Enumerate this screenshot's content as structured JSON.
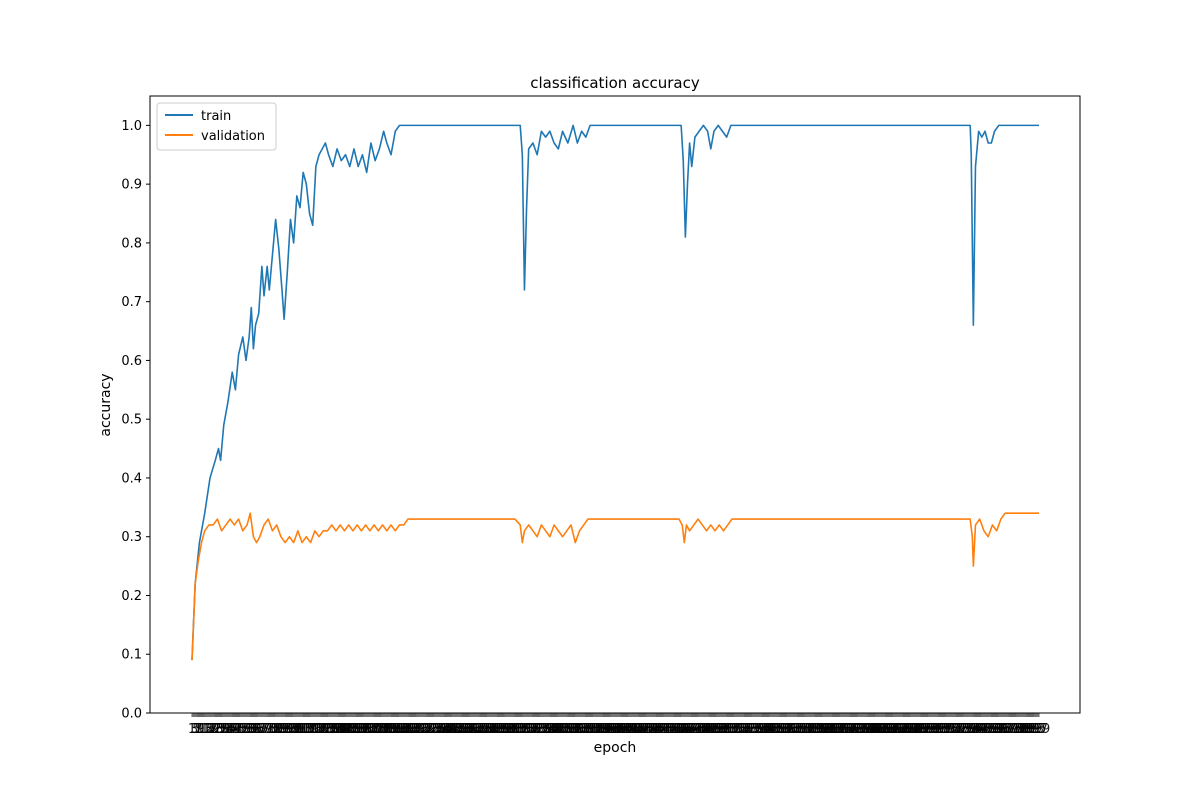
{
  "chart_data": {
    "type": "line",
    "title": "classification accuracy",
    "xlabel": "epoch",
    "ylabel": "accuracy",
    "xlim": [
      0,
      800
    ],
    "ylim": [
      0.0,
      1.05
    ],
    "yticks": [
      0.0,
      0.1,
      0.2,
      0.3,
      0.4,
      0.5,
      0.6,
      0.7,
      0.8,
      0.9,
      1.0
    ],
    "ytick_labels": [
      "0.0",
      "0.1",
      "0.2",
      "0.3",
      "0.4",
      "0.5",
      "0.6",
      "0.7",
      "0.8",
      "0.9",
      "1.0"
    ],
    "x_tick_count": 800,
    "grid": false,
    "legend_position": "upper-left",
    "series": [
      {
        "name": "train",
        "color": "#1f77b4",
        "points": [
          [
            0,
            0.09
          ],
          [
            3,
            0.22
          ],
          [
            7,
            0.29
          ],
          [
            12,
            0.34
          ],
          [
            17,
            0.4
          ],
          [
            22,
            0.43
          ],
          [
            25,
            0.45
          ],
          [
            27,
            0.43
          ],
          [
            30,
            0.49
          ],
          [
            34,
            0.53
          ],
          [
            38,
            0.58
          ],
          [
            41,
            0.55
          ],
          [
            44,
            0.61
          ],
          [
            48,
            0.64
          ],
          [
            51,
            0.6
          ],
          [
            54,
            0.64
          ],
          [
            56,
            0.69
          ],
          [
            58,
            0.62
          ],
          [
            60,
            0.66
          ],
          [
            63,
            0.68
          ],
          [
            66,
            0.76
          ],
          [
            68,
            0.71
          ],
          [
            71,
            0.76
          ],
          [
            73,
            0.72
          ],
          [
            76,
            0.78
          ],
          [
            79,
            0.84
          ],
          [
            82,
            0.79
          ],
          [
            85,
            0.72
          ],
          [
            87,
            0.67
          ],
          [
            90,
            0.75
          ],
          [
            93,
            0.84
          ],
          [
            96,
            0.8
          ],
          [
            99,
            0.88
          ],
          [
            102,
            0.86
          ],
          [
            105,
            0.92
          ],
          [
            108,
            0.9
          ],
          [
            111,
            0.85
          ],
          [
            114,
            0.83
          ],
          [
            117,
            0.93
          ],
          [
            120,
            0.95
          ],
          [
            123,
            0.96
          ],
          [
            126,
            0.97
          ],
          [
            129,
            0.95
          ],
          [
            133,
            0.93
          ],
          [
            137,
            0.96
          ],
          [
            141,
            0.94
          ],
          [
            145,
            0.95
          ],
          [
            149,
            0.93
          ],
          [
            153,
            0.96
          ],
          [
            157,
            0.93
          ],
          [
            161,
            0.95
          ],
          [
            165,
            0.92
          ],
          [
            169,
            0.97
          ],
          [
            173,
            0.94
          ],
          [
            177,
            0.96
          ],
          [
            181,
            0.99
          ],
          [
            184,
            0.97
          ],
          [
            188,
            0.95
          ],
          [
            192,
            0.99
          ],
          [
            196,
            1.0
          ],
          [
            205,
            1.0
          ],
          [
            250,
            1.0
          ],
          [
            300,
            1.0
          ],
          [
            310,
            1.0
          ],
          [
            312,
            0.95
          ],
          [
            314,
            0.72
          ],
          [
            316,
            0.86
          ],
          [
            318,
            0.96
          ],
          [
            322,
            0.97
          ],
          [
            326,
            0.95
          ],
          [
            330,
            0.99
          ],
          [
            334,
            0.98
          ],
          [
            338,
            0.99
          ],
          [
            342,
            0.97
          ],
          [
            346,
            0.96
          ],
          [
            350,
            0.99
          ],
          [
            355,
            0.97
          ],
          [
            360,
            1.0
          ],
          [
            364,
            0.97
          ],
          [
            368,
            0.99
          ],
          [
            372,
            0.98
          ],
          [
            376,
            1.0
          ],
          [
            385,
            1.0
          ],
          [
            420,
            1.0
          ],
          [
            455,
            1.0
          ],
          [
            462,
            1.0
          ],
          [
            464,
            0.94
          ],
          [
            466,
            0.81
          ],
          [
            468,
            0.9
          ],
          [
            470,
            0.97
          ],
          [
            472,
            0.93
          ],
          [
            475,
            0.98
          ],
          [
            479,
            0.99
          ],
          [
            483,
            1.0
          ],
          [
            487,
            0.99
          ],
          [
            490,
            0.96
          ],
          [
            493,
            0.99
          ],
          [
            497,
            1.0
          ],
          [
            501,
            0.99
          ],
          [
            505,
            0.98
          ],
          [
            509,
            1.0
          ],
          [
            515,
            1.0
          ],
          [
            580,
            1.0
          ],
          [
            650,
            1.0
          ],
          [
            735,
            1.0
          ],
          [
            736,
            0.95
          ],
          [
            738,
            0.66
          ],
          [
            740,
            0.93
          ],
          [
            743,
            0.99
          ],
          [
            746,
            0.98
          ],
          [
            749,
            0.99
          ],
          [
            752,
            0.97
          ],
          [
            755,
            0.97
          ],
          [
            758,
            0.99
          ],
          [
            762,
            1.0
          ],
          [
            775,
            1.0
          ],
          [
            800,
            1.0
          ]
        ]
      },
      {
        "name": "validation",
        "color": "#ff7f0e",
        "points": [
          [
            0,
            0.09
          ],
          [
            3,
            0.22
          ],
          [
            6,
            0.26
          ],
          [
            9,
            0.29
          ],
          [
            12,
            0.31
          ],
          [
            16,
            0.32
          ],
          [
            20,
            0.32
          ],
          [
            24,
            0.33
          ],
          [
            28,
            0.31
          ],
          [
            32,
            0.32
          ],
          [
            36,
            0.33
          ],
          [
            40,
            0.32
          ],
          [
            44,
            0.33
          ],
          [
            48,
            0.31
          ],
          [
            52,
            0.32
          ],
          [
            55,
            0.34
          ],
          [
            58,
            0.3
          ],
          [
            61,
            0.29
          ],
          [
            64,
            0.3
          ],
          [
            68,
            0.32
          ],
          [
            72,
            0.33
          ],
          [
            76,
            0.31
          ],
          [
            80,
            0.32
          ],
          [
            84,
            0.3
          ],
          [
            88,
            0.29
          ],
          [
            92,
            0.3
          ],
          [
            96,
            0.29
          ],
          [
            100,
            0.31
          ],
          [
            104,
            0.29
          ],
          [
            108,
            0.3
          ],
          [
            112,
            0.29
          ],
          [
            116,
            0.31
          ],
          [
            120,
            0.3
          ],
          [
            124,
            0.31
          ],
          [
            128,
            0.31
          ],
          [
            132,
            0.32
          ],
          [
            136,
            0.31
          ],
          [
            140,
            0.32
          ],
          [
            144,
            0.31
          ],
          [
            148,
            0.32
          ],
          [
            152,
            0.31
          ],
          [
            156,
            0.32
          ],
          [
            160,
            0.31
          ],
          [
            164,
            0.32
          ],
          [
            168,
            0.31
          ],
          [
            172,
            0.32
          ],
          [
            176,
            0.31
          ],
          [
            180,
            0.32
          ],
          [
            184,
            0.31
          ],
          [
            188,
            0.32
          ],
          [
            192,
            0.31
          ],
          [
            196,
            0.32
          ],
          [
            200,
            0.32
          ],
          [
            204,
            0.33
          ],
          [
            210,
            0.33
          ],
          [
            230,
            0.33
          ],
          [
            250,
            0.33
          ],
          [
            270,
            0.33
          ],
          [
            290,
            0.33
          ],
          [
            305,
            0.33
          ],
          [
            310,
            0.32
          ],
          [
            312,
            0.29
          ],
          [
            314,
            0.31
          ],
          [
            318,
            0.32
          ],
          [
            322,
            0.31
          ],
          [
            326,
            0.3
          ],
          [
            330,
            0.32
          ],
          [
            334,
            0.31
          ],
          [
            338,
            0.3
          ],
          [
            342,
            0.32
          ],
          [
            346,
            0.31
          ],
          [
            350,
            0.3
          ],
          [
            354,
            0.31
          ],
          [
            358,
            0.32
          ],
          [
            362,
            0.29
          ],
          [
            366,
            0.31
          ],
          [
            370,
            0.32
          ],
          [
            374,
            0.33
          ],
          [
            380,
            0.33
          ],
          [
            400,
            0.33
          ],
          [
            430,
            0.33
          ],
          [
            460,
            0.33
          ],
          [
            463,
            0.32
          ],
          [
            465,
            0.29
          ],
          [
            467,
            0.32
          ],
          [
            470,
            0.31
          ],
          [
            474,
            0.32
          ],
          [
            478,
            0.33
          ],
          [
            482,
            0.32
          ],
          [
            486,
            0.31
          ],
          [
            490,
            0.32
          ],
          [
            494,
            0.31
          ],
          [
            498,
            0.32
          ],
          [
            502,
            0.31
          ],
          [
            506,
            0.32
          ],
          [
            510,
            0.33
          ],
          [
            520,
            0.33
          ],
          [
            560,
            0.33
          ],
          [
            600,
            0.33
          ],
          [
            650,
            0.33
          ],
          [
            700,
            0.33
          ],
          [
            735,
            0.33
          ],
          [
            737,
            0.3
          ],
          [
            738,
            0.25
          ],
          [
            740,
            0.32
          ],
          [
            744,
            0.33
          ],
          [
            748,
            0.31
          ],
          [
            752,
            0.3
          ],
          [
            756,
            0.32
          ],
          [
            760,
            0.31
          ],
          [
            764,
            0.33
          ],
          [
            768,
            0.34
          ],
          [
            772,
            0.34
          ],
          [
            780,
            0.34
          ],
          [
            790,
            0.34
          ],
          [
            800,
            0.34
          ]
        ]
      }
    ]
  }
}
